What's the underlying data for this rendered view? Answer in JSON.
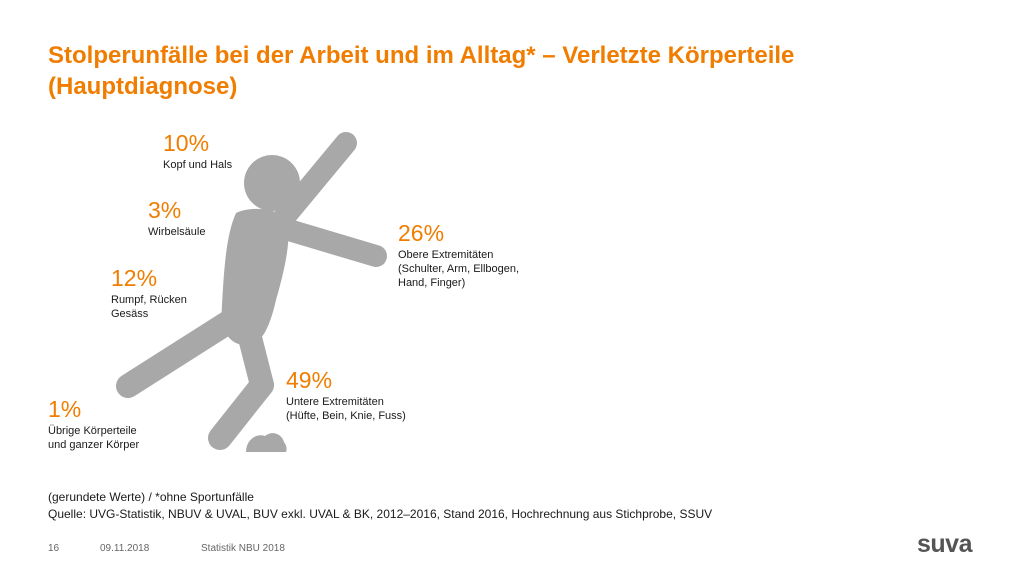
{
  "title": "Stolperunfälle bei der Arbeit und im Alltag* – Verletzte Körperteile (Hauptdiagnose)",
  "colors": {
    "accent": "#f07d00",
    "figure": "#a8a8a8",
    "text": "#1a1a1a"
  },
  "stats": {
    "kopf": {
      "pct": "10%",
      "label1": "Kopf und Hals"
    },
    "wirbel": {
      "pct": "3%",
      "label1": "Wirbelsäule"
    },
    "rumpf": {
      "pct": "12%",
      "label1": "Rumpf, Rücken",
      "label2": "Gesäss"
    },
    "uebrige": {
      "pct": "1%",
      "label1": "Übrige Körperteile",
      "label2": "und ganzer Körper"
    },
    "obere": {
      "pct": "26%",
      "label1": "Obere Extremitäten",
      "label2": "(Schulter, Arm, Ellbogen,",
      "label3": "Hand, Finger)"
    },
    "untere": {
      "pct": "49%",
      "label1": "Untere Extremitäten",
      "label2": "(Hüfte, Bein, Knie, Fuss)"
    }
  },
  "footnote": {
    "line1": "(gerundete Werte) / *ohne Sportunfälle",
    "line2": "Quelle: UVG-Statistik, NBUV & UVAL, BUV exkl. UVAL & BK, 2012–2016, Stand 2016, Hochrechnung aus Stichprobe, SSUV"
  },
  "footer": {
    "page": "16",
    "date": "09.11.2018",
    "name": "Statistik NBU 2018"
  },
  "logo": "suva"
}
